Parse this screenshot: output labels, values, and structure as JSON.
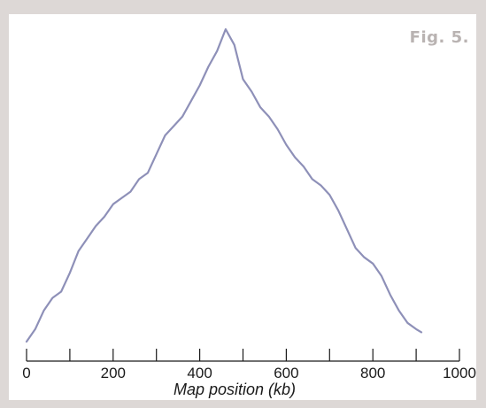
{
  "figure_label": "Fig. 5.",
  "chart_data": {
    "type": "line",
    "title": "",
    "xlabel": "Map position (kb)",
    "ylabel": "",
    "xlim": [
      0,
      1000
    ],
    "ylim": [
      0,
      1
    ],
    "xticks": [
      0,
      200,
      400,
      600,
      800,
      1000
    ],
    "xminor_ticks": [
      100,
      300,
      500,
      700,
      900
    ],
    "grid": false,
    "legend": "none",
    "line_color": "#8e90b8",
    "series": [
      {
        "x": [
          0,
          20,
          40,
          60,
          80,
          100,
          120,
          140,
          160,
          180,
          200,
          220,
          240,
          260,
          280,
          300,
          320,
          340,
          360,
          380,
          400,
          420,
          440,
          460,
          480,
          500,
          520,
          540,
          560,
          580,
          600,
          620,
          640,
          660,
          680,
          700,
          720,
          740,
          760,
          780,
          800,
          820,
          840,
          860,
          880,
          900,
          912
        ],
        "y": [
          0.0,
          0.04,
          0.1,
          0.14,
          0.16,
          0.22,
          0.29,
          0.33,
          0.37,
          0.4,
          0.44,
          0.46,
          0.48,
          0.52,
          0.54,
          0.6,
          0.66,
          0.69,
          0.72,
          0.77,
          0.82,
          0.88,
          0.93,
          1.0,
          0.95,
          0.84,
          0.8,
          0.75,
          0.72,
          0.68,
          0.63,
          0.59,
          0.56,
          0.52,
          0.5,
          0.47,
          0.42,
          0.36,
          0.3,
          0.27,
          0.25,
          0.21,
          0.15,
          0.1,
          0.06,
          0.04,
          0.03
        ]
      }
    ]
  }
}
